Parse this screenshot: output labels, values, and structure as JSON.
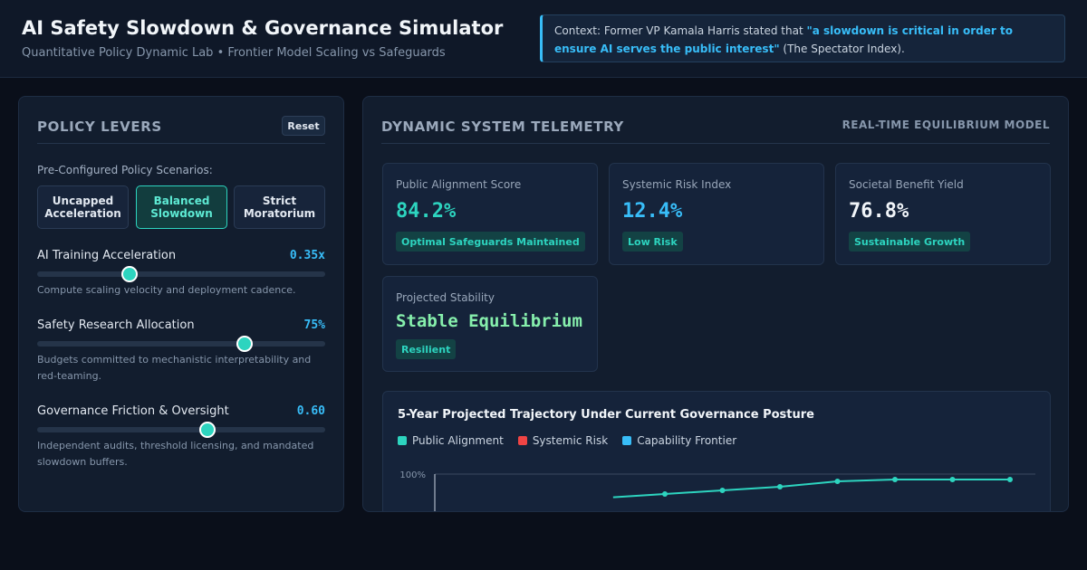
{
  "header": {
    "title": "AI Safety Slowdown & Governance Simulator",
    "subtitle": "Quantitative Policy Dynamic Lab • Frontier Model Scaling vs Safeguards",
    "context": {
      "prefix": "Context: Former VP Kamala Harris stated that ",
      "quote": "\"a slowdown is critical in order to ensure AI serves the public interest\"",
      "suffix": " (The Spectator Index)."
    }
  },
  "levers": {
    "title": "Policy Levers",
    "reset_label": "Reset",
    "scenarios_label": "Pre-Configured Policy Scenarios:",
    "scenarios": [
      {
        "label": "Uncapped Acceleration",
        "active": false
      },
      {
        "label": "Balanced Slowdown",
        "active": true
      },
      {
        "label": "Strict Moratorium",
        "active": false
      }
    ],
    "sliders": [
      {
        "label": "AI Training Acceleration",
        "value": "0.35x",
        "level": 0.32,
        "desc": "Compute scaling velocity and deployment cadence."
      },
      {
        "label": "Safety Research Allocation",
        "value": "75%",
        "level": 0.72,
        "desc": "Budgets committed to mechanistic interpretability and red-teaming."
      },
      {
        "label": "Governance Friction & Oversight",
        "value": "0.60",
        "level": 0.59,
        "desc": "Independent audits, threshold licensing, and mandated slowdown buffers."
      }
    ]
  },
  "telemetry": {
    "title": "Dynamic System Telemetry",
    "subtitle": "Real-Time Equilibrium Model",
    "cards": [
      {
        "label": "Public Alignment Score",
        "value": "84.2%",
        "badge": "Optimal Safeguards Maintained",
        "color": "#2dd4bf"
      },
      {
        "label": "Systemic Risk Index",
        "value": "12.4%",
        "badge": "Low Risk",
        "color": "#38bdf8"
      },
      {
        "label": "Societal Benefit Yield",
        "value": "76.8%",
        "badge": "Sustainable Growth",
        "color": "#f1f5f9"
      },
      {
        "label": "Projected Stability",
        "value": "Stable Equilibrium",
        "badge": "Resilient",
        "color": "#86efac"
      }
    ]
  },
  "chart_data": {
    "type": "line",
    "title": "5-Year Projected Trajectory Under Current Governance Posture",
    "legend_position": "top-left",
    "series": [
      {
        "name": "Public Alignment",
        "color": "#2dd4bf",
        "values": [
          null,
          null,
          null,
          null,
          89,
          91,
          93,
          96,
          97,
          97,
          97
        ]
      },
      {
        "name": "Systemic Risk",
        "color": "#ef4444",
        "values": []
      },
      {
        "name": "Capability Frontier",
        "color": "#38bdf8",
        "values": []
      }
    ],
    "y_ticks": [
      "100%"
    ],
    "ylim": [
      0,
      100
    ]
  }
}
